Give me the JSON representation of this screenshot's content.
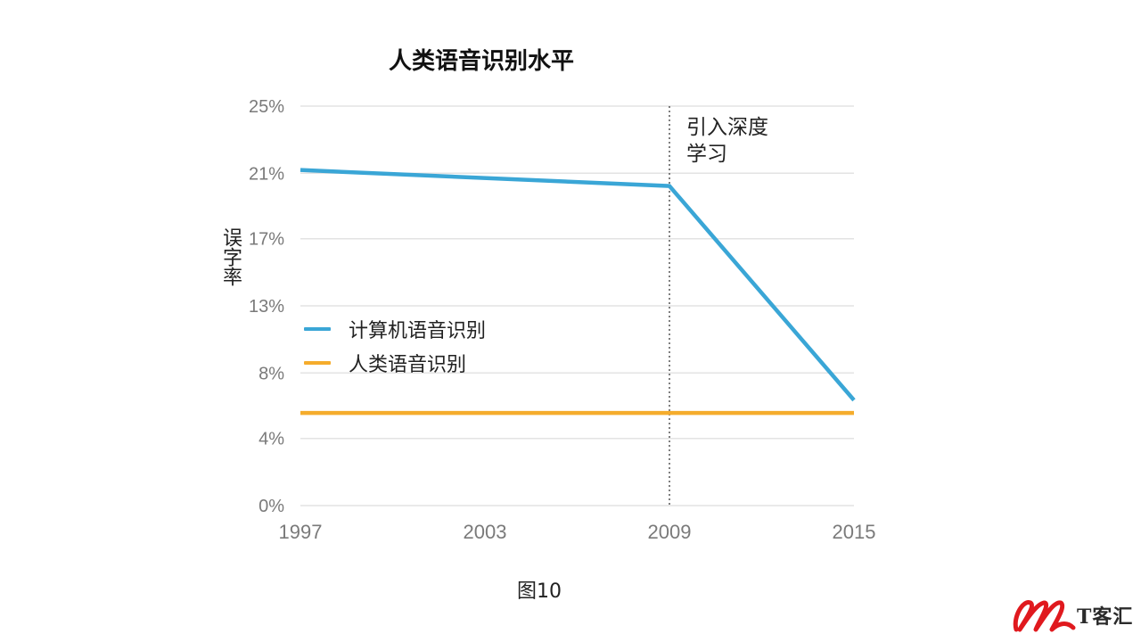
{
  "chart_data": {
    "type": "line",
    "title": "人类语音识别水平",
    "ylabel": "误字率",
    "xlabel": "",
    "x_ticks": [
      "1997",
      "2003",
      "2009",
      "2015"
    ],
    "y_ticks": [
      "0%",
      "4%",
      "8%",
      "13%",
      "17%",
      "21%",
      "25%"
    ],
    "y_tick_values": [
      0,
      4.2,
      8.3,
      12.5,
      16.7,
      20.8,
      25
    ],
    "xlim": [
      1997,
      2015
    ],
    "ylim": [
      0,
      25
    ],
    "grid": true,
    "legend_position": "center-left",
    "series": [
      {
        "name": "计算机语音识别",
        "color": "#3AA6D6",
        "points": [
          {
            "x": 1997,
            "y": 21.0
          },
          {
            "x": 2009,
            "y": 20.0
          },
          {
            "x": 2015,
            "y": 6.6
          }
        ]
      },
      {
        "name": "人类语音识别",
        "color": "#F5AC2C",
        "points": [
          {
            "x": 1997,
            "y": 5.8
          },
          {
            "x": 2015,
            "y": 5.8
          }
        ]
      }
    ],
    "annotation": {
      "x": 2009,
      "lines": [
        "引入深度",
        "学习"
      ]
    },
    "caption": "图10"
  },
  "logo": {
    "text": "T客汇",
    "colors": {
      "primary": "#E0191E",
      "text": "#2b2b2b"
    }
  },
  "colors": {
    "grid": "#E3E3E3",
    "tick_text": "#7A7A7A",
    "annotation_line": "#555555"
  }
}
